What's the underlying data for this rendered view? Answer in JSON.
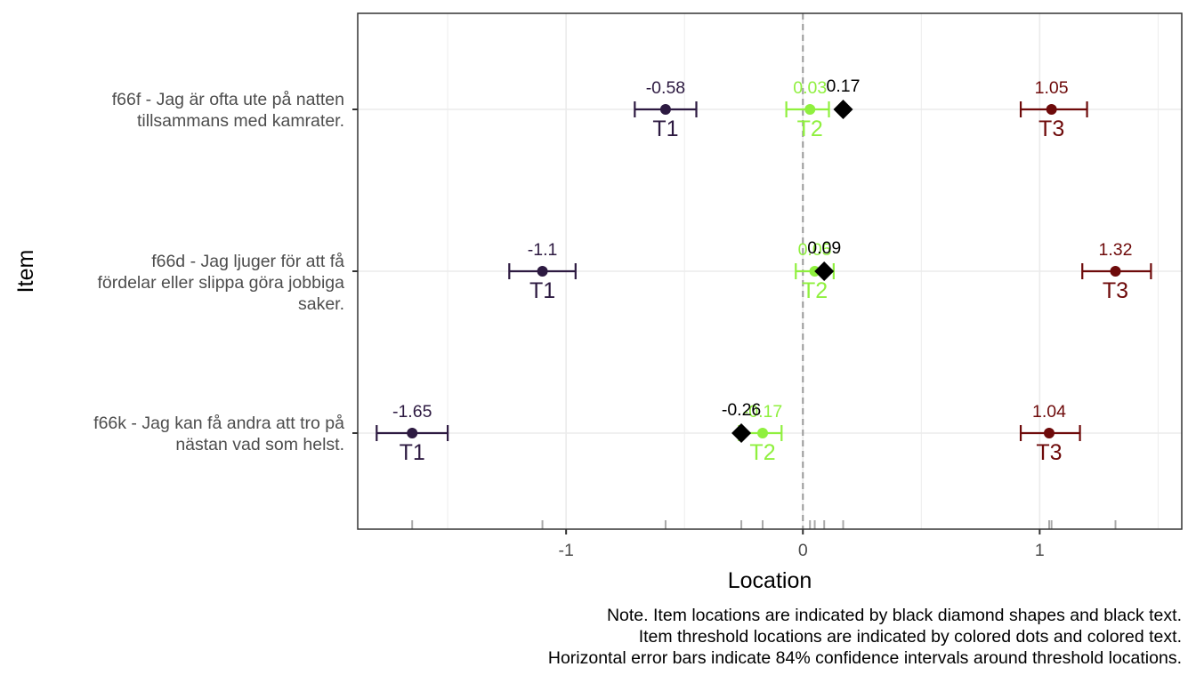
{
  "chart_data": {
    "type": "scatter",
    "xlabel": "Location",
    "ylabel": "Item",
    "xlim": [
      -1.88,
      1.6
    ],
    "x_ticks": [
      "-1",
      "0",
      "1"
    ],
    "x_tick_values": [
      -1,
      0,
      1
    ],
    "grid": true,
    "reference_line_x": 0,
    "threshold_colors": {
      "T1": "#2d1a41",
      "T2": "#8ff03e",
      "T3": "#6e0a0a"
    },
    "items": [
      {
        "label_lines": [
          "f66f - Jag är ofta ute på natten",
          "tillsammans med kamrater."
        ],
        "location": 0.17,
        "location_label": "0.17",
        "thresholds": [
          {
            "name": "T1",
            "value": -0.58,
            "label": "-0.58",
            "ci": [
              -0.71,
              -0.45
            ]
          },
          {
            "name": "T2",
            "value": 0.03,
            "label": "0.03",
            "ci": [
              -0.07,
              0.11
            ]
          },
          {
            "name": "T3",
            "value": 1.05,
            "label": "1.05",
            "ci": [
              0.92,
              1.2
            ]
          }
        ]
      },
      {
        "label_lines": [
          "f66d - Jag ljuger för att få",
          "fördelar eller slippa göra jobbiga",
          "saker."
        ],
        "location": 0.09,
        "location_label": "0.09",
        "thresholds": [
          {
            "name": "T1",
            "value": -1.1,
            "label": "-1.1",
            "ci": [
              -1.24,
              -0.96
            ]
          },
          {
            "name": "T2",
            "value": 0.05,
            "label": "0.05",
            "ci": [
              -0.03,
              0.13
            ]
          },
          {
            "name": "T3",
            "value": 1.32,
            "label": "1.32",
            "ci": [
              1.18,
              1.47
            ]
          }
        ]
      },
      {
        "label_lines": [
          "f66k - Jag kan få andra att tro på",
          "nästan vad som helst."
        ],
        "location": -0.26,
        "location_label": "-0.26",
        "thresholds": [
          {
            "name": "T1",
            "value": -1.65,
            "label": "-1.65",
            "ci": [
              -1.8,
              -1.5
            ]
          },
          {
            "name": "T2",
            "value": -0.17,
            "label": "-0.17",
            "ci": [
              -0.27,
              -0.09
            ]
          },
          {
            "name": "T3",
            "value": 1.04,
            "label": "1.04",
            "ci": [
              0.92,
              1.17
            ]
          }
        ]
      }
    ],
    "note_lines": [
      "Note. Item locations are indicated by black diamond shapes and black text.",
      "Item threshold locations are indicated by colored dots and colored text.",
      "Horizontal error bars indicate 84% confidence intervals around threshold locations."
    ]
  }
}
